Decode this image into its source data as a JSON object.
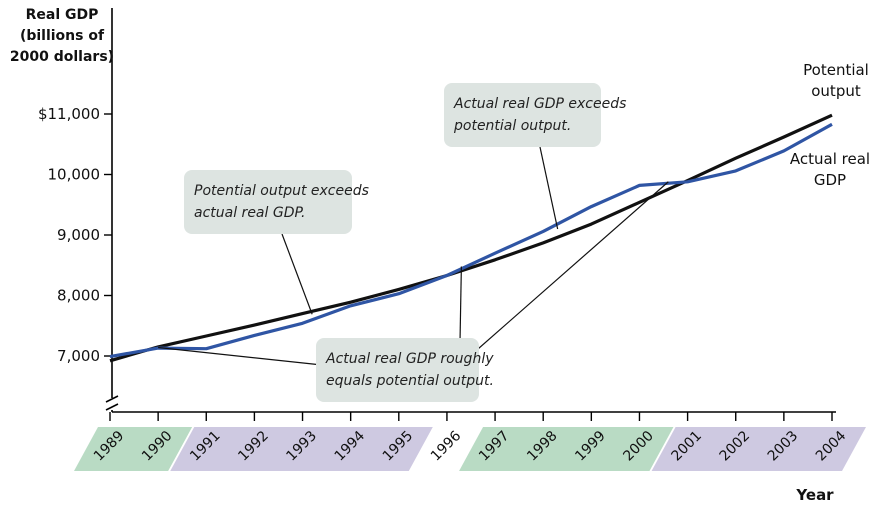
{
  "chart_data": {
    "type": "line",
    "ylabel": [
      "Real GDP",
      "(billions of",
      "2000 dollars)"
    ],
    "xlabel": "Year",
    "ylim": [
      7000,
      11000
    ],
    "y_axis_break": true,
    "y_ticks": [
      {
        "value": 7000,
        "label": "7,000"
      },
      {
        "value": 8000,
        "label": "8,000"
      },
      {
        "value": 9000,
        "label": "9,000"
      },
      {
        "value": 10000,
        "label": "10,000"
      },
      {
        "value": 11000,
        "label": "$11,000"
      }
    ],
    "x": [
      1989,
      1990,
      1991,
      1992,
      1993,
      1994,
      1995,
      1996,
      1997,
      1998,
      1999,
      2000,
      2001,
      2002,
      2003,
      2004
    ],
    "x_labels": [
      "1989",
      "1990",
      "1991",
      "1992",
      "1993",
      "1994",
      "1995",
      "1996",
      "1997",
      "1998",
      "1999",
      "2000",
      "2001",
      "2002",
      "2003",
      "2004"
    ],
    "series": [
      {
        "name": "Potential output",
        "label_lines": [
          "Potential",
          "output"
        ],
        "color": "#111111",
        "values": [
          6920,
          7150,
          7330,
          7510,
          7700,
          7890,
          8100,
          8330,
          8590,
          8870,
          9180,
          9540,
          9900,
          10270,
          10620,
          10980
        ]
      },
      {
        "name": "Actual real GDP",
        "label_lines": [
          "Actual real",
          "GDP"
        ],
        "color": "#2f55a4",
        "values": [
          6990,
          7130,
          7120,
          7340,
          7540,
          7830,
          8030,
          8330,
          8700,
          9060,
          9470,
          9820,
          9880,
          10060,
          10390,
          10830
        ]
      }
    ],
    "shaded_bands": [
      {
        "start": 1989,
        "end": 1990,
        "color": "#b9dbc4"
      },
      {
        "start": 1991,
        "end": 1995,
        "color": "#cec9e1"
      },
      {
        "start": 1997,
        "end": 2000,
        "color": "#b9dbc4"
      },
      {
        "start": 2001,
        "end": 2004,
        "color": "#cec9e1"
      }
    ],
    "annotations": [
      {
        "lines": [
          "Actual real GDP exceeds",
          "potential output."
        ],
        "point": [
          1998.3,
          9100
        ]
      },
      {
        "lines": [
          "Potential output exceeds",
          "actual real GDP."
        ],
        "point": [
          1993.2,
          7690
        ]
      },
      {
        "lines": [
          "Actual real GDP roughly",
          "equals potential output."
        ],
        "points": [
          [
            1990,
            7140
          ],
          [
            1996.3,
            8480
          ],
          [
            2000.6,
            9880
          ]
        ]
      }
    ]
  }
}
